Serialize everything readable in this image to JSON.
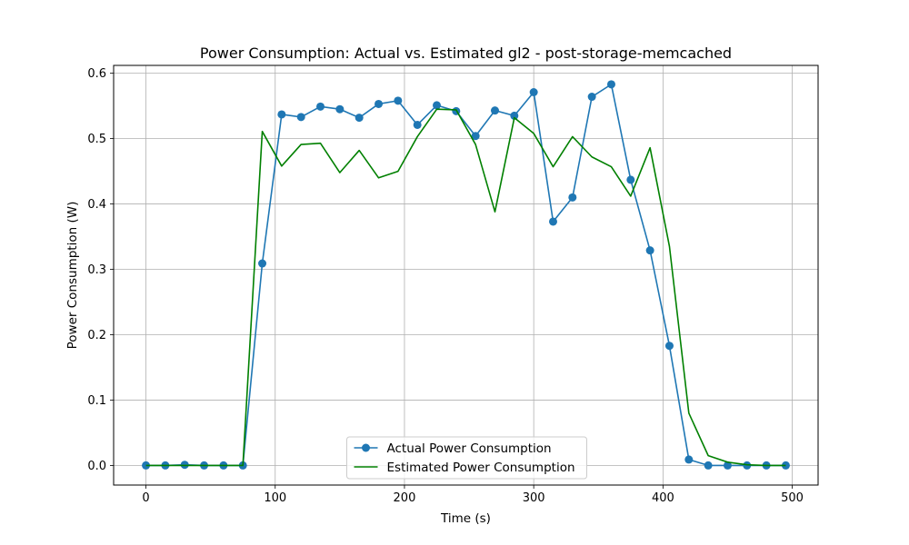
{
  "chart_data": {
    "type": "line",
    "title": "Power Consumption: Actual vs. Estimated gl2 - post-storage-memcached",
    "xlabel": "Time (s)",
    "ylabel": "Power Consumption (W)",
    "xlim": [
      -25,
      520
    ],
    "ylim": [
      -0.03,
      0.612
    ],
    "xticks": [
      0,
      100,
      200,
      300,
      400,
      500
    ],
    "yticks": [
      0.0,
      0.1,
      0.2,
      0.3,
      0.4,
      0.5,
      0.6
    ],
    "grid": true,
    "legend_position": "lower center",
    "series": [
      {
        "name": "Actual Power Consumption",
        "color": "#1f77b4",
        "marker": "circle",
        "x": [
          0,
          15,
          30,
          45,
          60,
          75,
          90,
          105,
          120,
          135,
          150,
          165,
          180,
          195,
          210,
          225,
          240,
          255,
          270,
          285,
          300,
          315,
          330,
          345,
          360,
          375,
          390,
          405,
          420,
          435,
          450,
          465,
          480,
          495
        ],
        "y": [
          0.0,
          0.0,
          0.001,
          0.0,
          0.0,
          0.0,
          0.309,
          0.537,
          0.533,
          0.549,
          0.545,
          0.532,
          0.553,
          0.558,
          0.521,
          0.551,
          0.542,
          0.504,
          0.543,
          0.535,
          0.571,
          0.373,
          0.41,
          0.564,
          0.583,
          0.437,
          0.329,
          0.183,
          0.009,
          0.0,
          0.0,
          0.0,
          0.0,
          0.0
        ]
      },
      {
        "name": "Estimated Power Consumption",
        "color": "#008000",
        "marker": "none",
        "x": [
          0,
          15,
          30,
          45,
          60,
          75,
          90,
          105,
          120,
          135,
          150,
          165,
          180,
          195,
          210,
          225,
          240,
          255,
          270,
          285,
          300,
          315,
          330,
          345,
          360,
          375,
          390,
          405,
          420,
          435,
          450,
          465,
          480,
          495
        ],
        "y": [
          0.0,
          0.0,
          0.0,
          0.0,
          0.0,
          0.0,
          0.511,
          0.458,
          0.491,
          0.493,
          0.448,
          0.482,
          0.44,
          0.45,
          0.503,
          0.545,
          0.544,
          0.491,
          0.388,
          0.532,
          0.508,
          0.457,
          0.503,
          0.472,
          0.457,
          0.412,
          0.486,
          0.335,
          0.08,
          0.015,
          0.005,
          0.001,
          0.0,
          0.0
        ]
      }
    ]
  }
}
